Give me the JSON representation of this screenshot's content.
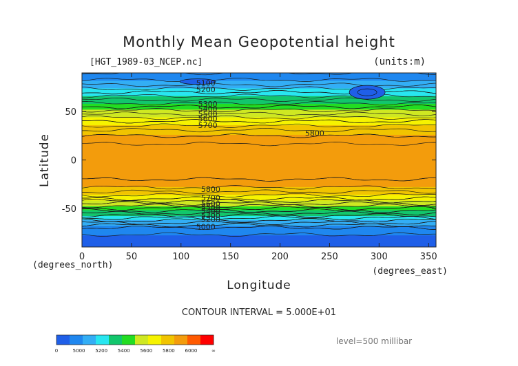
{
  "chart_data": {
    "type": "contour map",
    "title": "Monthly Mean Geopotential height",
    "file_label": "[HGT_1989-03_NCEP.nc]",
    "units_label": "(units:m)",
    "xlabel": "Longitude",
    "ylabel": "Latitude",
    "x_unit_label": "(degrees_east)",
    "y_unit_label": "(degrees_north)",
    "xlim": [
      0,
      357.5
    ],
    "ylim": [
      -90,
      90
    ],
    "x_ticks": [
      0,
      50,
      100,
      150,
      200,
      250,
      300,
      350
    ],
    "y_ticks": [
      50,
      0,
      -50
    ],
    "contour_interval_text": "CONTOUR INTERVAL = 5.000E+01",
    "level_text": "level=500 millibar",
    "colorbar": {
      "tick_labels": [
        "0",
        "5000",
        "5200",
        "5400",
        "5600",
        "5800",
        "6000",
        "∞"
      ],
      "colors": [
        "#1f5fe8",
        "#1f87ef",
        "#33aef5",
        "#28e6f0",
        "#12c66c",
        "#22dd22",
        "#cfe822",
        "#f6f300",
        "#f1c400",
        "#f39c0c",
        "#ff5a00",
        "#ff0000"
      ]
    },
    "zonal_profile": [
      {
        "lat": 90,
        "value": 5050
      },
      {
        "lat": 80,
        "value": 5120
      },
      {
        "lat": 70,
        "value": 5250
      },
      {
        "lat": 60,
        "value": 5380
      },
      {
        "lat": 50,
        "value": 5520
      },
      {
        "lat": 40,
        "value": 5650
      },
      {
        "lat": 30,
        "value": 5760
      },
      {
        "lat": 20,
        "value": 5840
      },
      {
        "lat": 10,
        "value": 5870
      },
      {
        "lat": 0,
        "value": 5875
      },
      {
        "lat": -10,
        "value": 5870
      },
      {
        "lat": -20,
        "value": 5850
      },
      {
        "lat": -30,
        "value": 5790
      },
      {
        "lat": -40,
        "value": 5650
      },
      {
        "lat": -50,
        "value": 5450
      },
      {
        "lat": -60,
        "value": 5250
      },
      {
        "lat": -70,
        "value": 5050
      },
      {
        "lat": -80,
        "value": 4980
      },
      {
        "lat": -90,
        "value": 4950
      }
    ],
    "contour_labels": [
      {
        "text": "5100",
        "lon": 125,
        "lat": 77
      },
      {
        "text": "5200",
        "lon": 125,
        "lat": 70
      },
      {
        "text": "5300",
        "lon": 127,
        "lat": 55
      },
      {
        "text": "5400",
        "lon": 127,
        "lat": 50
      },
      {
        "text": "5500",
        "lon": 127,
        "lat": 45
      },
      {
        "text": "5600",
        "lon": 127,
        "lat": 40
      },
      {
        "text": "5700",
        "lon": 127,
        "lat": 33
      },
      {
        "text": "5800",
        "lon": 235,
        "lat": 25
      },
      {
        "text": "5800",
        "lon": 130,
        "lat": -33
      },
      {
        "text": "5700",
        "lon": 130,
        "lat": -42
      },
      {
        "text": "5600",
        "lon": 130,
        "lat": -48
      },
      {
        "text": "5500",
        "lon": 130,
        "lat": -52
      },
      {
        "text": "5400",
        "lon": 130,
        "lat": -56
      },
      {
        "text": "5300",
        "lon": 130,
        "lat": -60
      },
      {
        "text": "5200",
        "lon": 130,
        "lat": -64
      },
      {
        "text": "5000",
        "lon": 125,
        "lat": -72
      }
    ]
  }
}
